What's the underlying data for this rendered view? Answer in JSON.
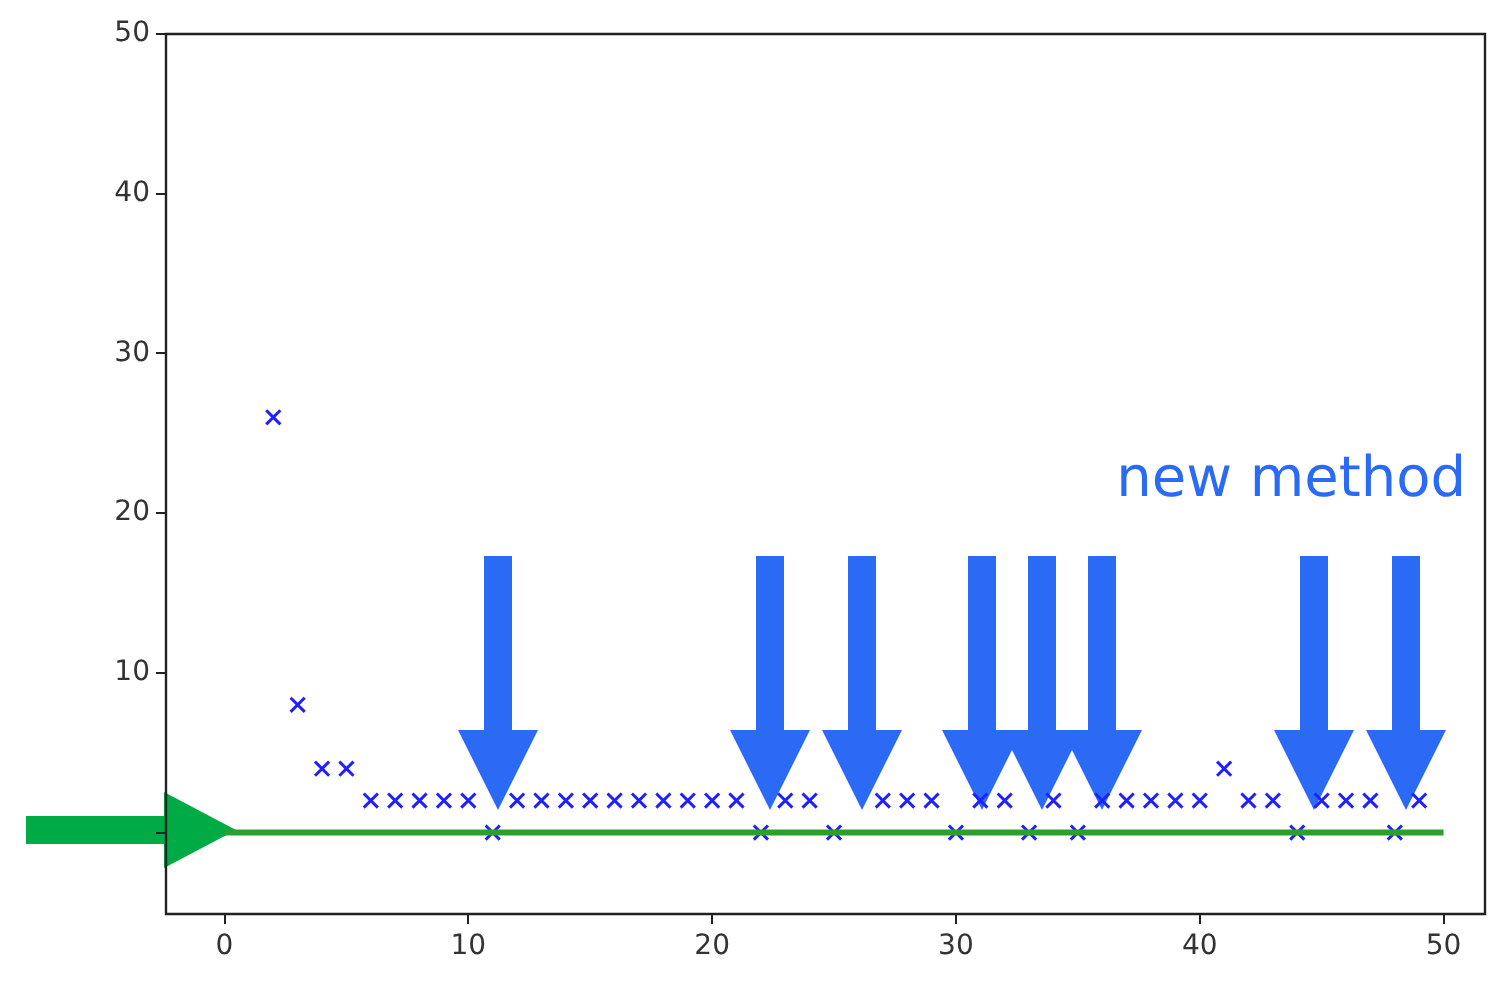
{
  "chart_data": {
    "type": "scatter",
    "x": [
      2,
      3,
      4,
      5,
      6,
      7,
      8,
      9,
      10,
      11,
      12,
      13,
      14,
      15,
      16,
      17,
      18,
      19,
      20,
      21,
      22,
      23,
      24,
      25,
      27,
      28,
      29,
      30,
      31,
      32,
      33,
      34,
      35,
      36,
      37,
      38,
      39,
      40,
      41,
      42,
      43,
      44,
      45,
      46,
      47,
      48,
      49
    ],
    "series": [
      {
        "color": "#2020ff",
        "values": [
          26,
          8,
          4,
          4,
          2,
          2,
          2,
          2,
          2,
          0,
          2,
          2,
          2,
          2,
          2,
          2,
          2,
          2,
          2,
          2,
          0,
          2,
          2,
          0,
          2,
          2,
          2,
          0,
          2,
          2,
          0,
          2,
          0,
          2,
          2,
          2,
          2,
          2,
          4,
          2,
          2,
          0,
          2,
          2,
          2,
          0,
          2
        ]
      }
    ],
    "marker": "cross",
    "xlim": [
      -2.4,
      51.7
    ],
    "ylim": [
      -5.1,
      50
    ],
    "xticks": [
      0,
      10,
      20,
      30,
      40,
      50
    ],
    "yticks": [
      {
        "value": 0,
        "label": null
      },
      10,
      20,
      30,
      40,
      50
    ],
    "grid": false,
    "legend": false,
    "ref_lines": [
      {
        "axis": "y",
        "value": 0,
        "color": "#2ca02c"
      }
    ],
    "annotations": [
      "new method"
    ]
  }
}
